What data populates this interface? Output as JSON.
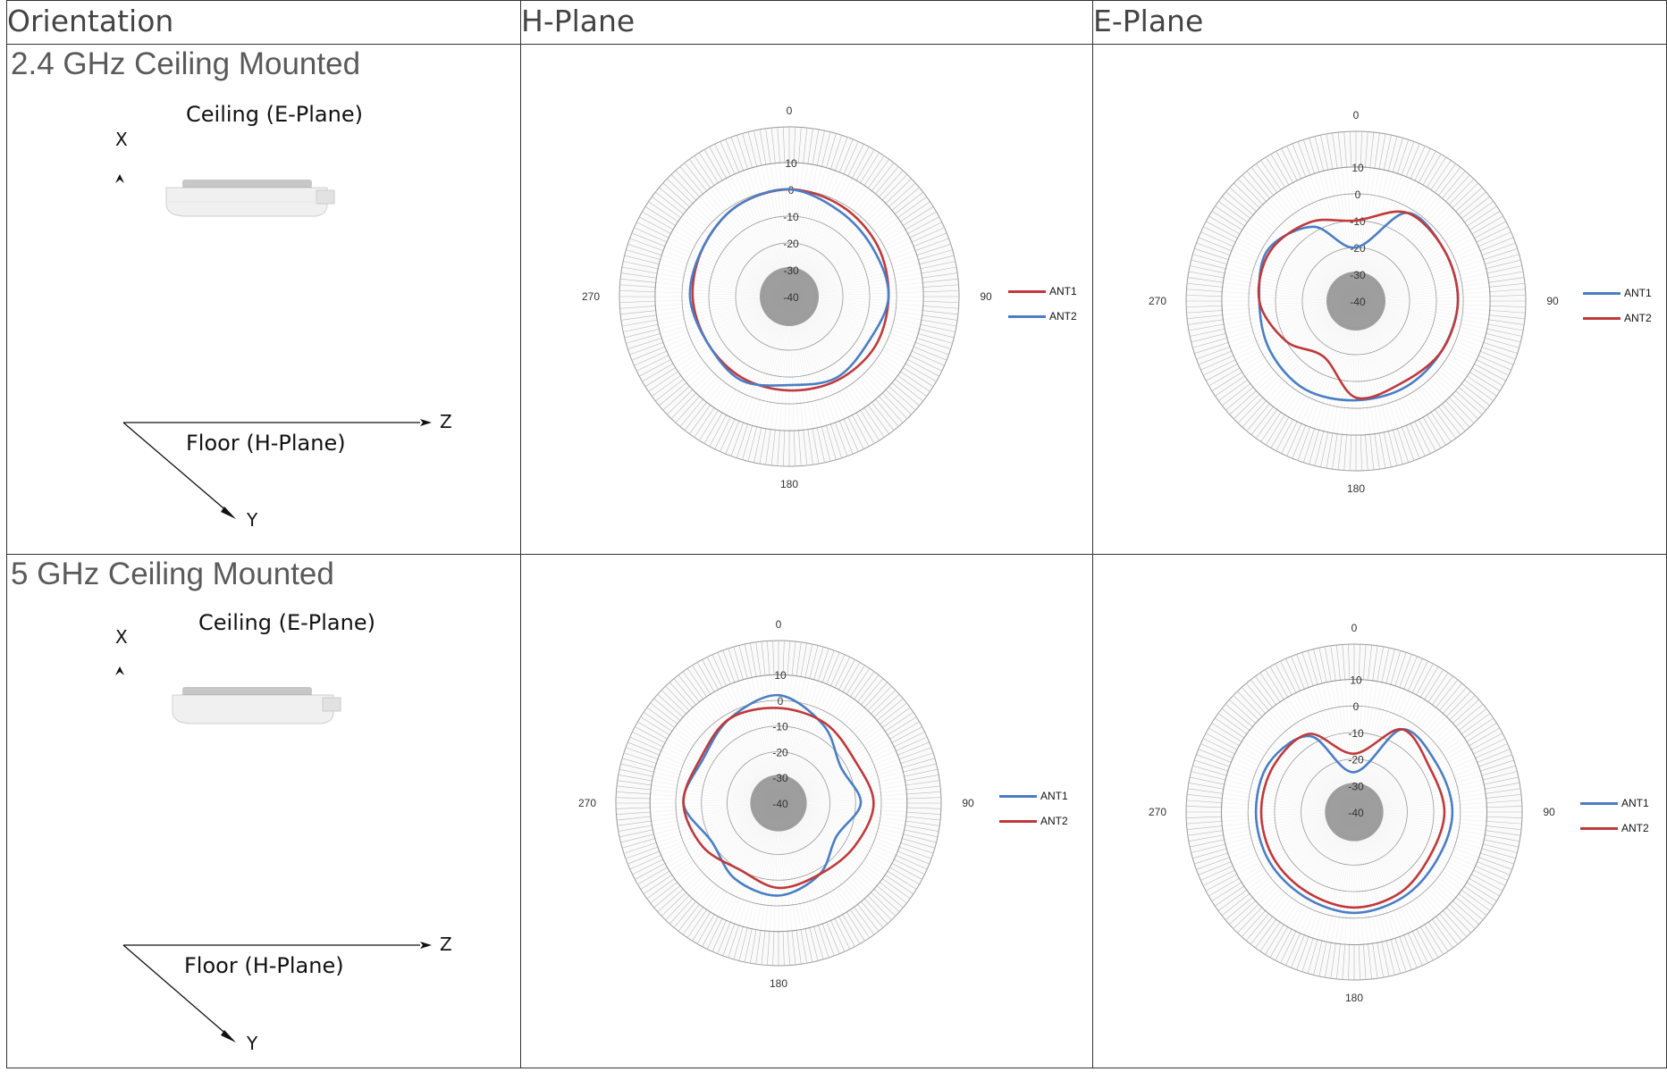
{
  "table": {
    "headers": [
      "Orientation",
      "H-Plane",
      "E-Plane"
    ],
    "rows": [
      {
        "title": "2.4 GHz Ceiling Mounted",
        "ceiling_label": "Ceiling (E-Plane)",
        "floor_label": "Floor (H-Plane)",
        "axis_x": "X",
        "axis_y": "Y",
        "axis_z": "Z"
      },
      {
        "title": "5 GHz Ceiling Mounted",
        "ceiling_label": "Ceiling (E-Plane)",
        "floor_label": "Floor (H-Plane)",
        "axis_x": "X",
        "axis_y": "Y",
        "axis_z": "Z"
      }
    ]
  },
  "chart_data": [
    {
      "type": "line",
      "subtype": "polar",
      "panel": "2.4 GHz H-Plane",
      "angle_labels": [
        "0",
        "90",
        "180",
        "270"
      ],
      "radial_ticks": [
        "10",
        "0",
        "-10",
        "-20",
        "-30",
        "-40"
      ],
      "rlim": [
        -40,
        10
      ],
      "angles_deg": [
        0,
        30,
        60,
        90,
        120,
        150,
        180,
        210,
        240,
        270,
        300,
        330
      ],
      "series": [
        {
          "name": "ANT1",
          "color": "#c0393b",
          "values": [
            0,
            -1,
            -2,
            -3,
            -3,
            -4,
            -5,
            -5,
            -5,
            -4,
            -3,
            -1
          ]
        },
        {
          "name": "ANT2",
          "color": "#4a7ec4",
          "values": [
            0,
            -3,
            -4,
            -3,
            -6,
            -5,
            -7,
            -4,
            -5,
            -3,
            -3,
            -1
          ]
        }
      ],
      "legend_position": "right"
    },
    {
      "type": "line",
      "subtype": "polar",
      "panel": "2.4 GHz E-Plane",
      "angle_labels": [
        "0",
        "90",
        "180",
        "270"
      ],
      "radial_ticks": [
        "10",
        "0",
        "-10",
        "-20",
        "-30",
        "-40"
      ],
      "rlim": [
        -40,
        10
      ],
      "angles_deg": [
        0,
        30,
        60,
        90,
        120,
        150,
        180,
        210,
        240,
        270,
        300,
        330
      ],
      "series": [
        {
          "name": "ANT1",
          "color": "#4a7ec4",
          "values": [
            -20,
            -2,
            -2,
            -2,
            -3,
            -3,
            -3,
            -2,
            -3,
            -4,
            -2,
            -8
          ]
        },
        {
          "name": "ANT2",
          "color": "#c0393b",
          "values": [
            -10,
            -2,
            -2,
            -2,
            -3,
            -5,
            -4,
            -16,
            -10,
            -4,
            -3,
            -6
          ]
        }
      ],
      "legend_position": "right"
    },
    {
      "type": "line",
      "subtype": "polar",
      "panel": "5 GHz H-Plane",
      "angle_labels": [
        "0",
        "90",
        "180",
        "270"
      ],
      "radial_ticks": [
        "10",
        "0",
        "-10",
        "-20",
        "-30",
        "-40"
      ],
      "rlim": [
        -40,
        10
      ],
      "angles_deg": [
        0,
        30,
        60,
        90,
        120,
        150,
        180,
        210,
        240,
        270,
        300,
        330
      ],
      "series": [
        {
          "name": "ANT1",
          "color": "#4a7ec4",
          "values": [
            2,
            -5,
            -12,
            -8,
            -14,
            -8,
            -4,
            -6,
            -10,
            -3,
            -6,
            -2
          ]
        },
        {
          "name": "ANT2",
          "color": "#c0393b",
          "values": [
            -3,
            -4,
            -6,
            -3,
            -6,
            -8,
            -7,
            -10,
            -6,
            -3,
            -5,
            -2
          ]
        }
      ],
      "legend_position": "right"
    },
    {
      "type": "line",
      "subtype": "polar",
      "panel": "5 GHz E-Plane",
      "angle_labels": [
        "0",
        "90",
        "180",
        "270"
      ],
      "radial_ticks": [
        "10",
        "0",
        "-10",
        "-20",
        "-30",
        "-40"
      ],
      "rlim": [
        -40,
        10
      ],
      "angles_deg": [
        0,
        30,
        60,
        90,
        120,
        150,
        180,
        210,
        240,
        270,
        300,
        330
      ],
      "series": [
        {
          "name": "ANT1",
          "color": "#4a7ec4",
          "values": [
            -25,
            -4,
            -4,
            -3,
            -4,
            -3,
            -2,
            -3,
            -3,
            -3,
            -3,
            -7
          ]
        },
        {
          "name": "ANT2",
          "color": "#c0393b",
          "values": [
            -18,
            -4,
            -7,
            -6,
            -7,
            -5,
            -4,
            -5,
            -5,
            -5,
            -5,
            -6
          ]
        }
      ],
      "legend_position": "right"
    }
  ]
}
